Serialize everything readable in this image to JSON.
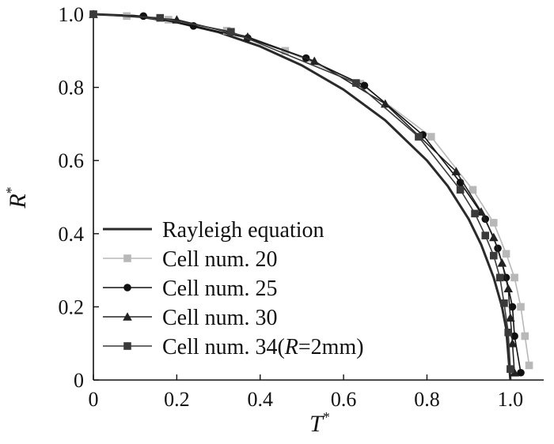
{
  "chart_data": {
    "type": "line",
    "title": "",
    "xlabel": "T",
    "xlabel_superscript": "*",
    "ylabel": "R",
    "ylabel_superscript": "*",
    "xlim": [
      0,
      1.08
    ],
    "ylim": [
      0,
      1.0
    ],
    "xticks": [
      0,
      0.2,
      0.4,
      0.6,
      0.8,
      1.0
    ],
    "xtick_labels": [
      "0",
      "0.2",
      "0.4",
      "0.6",
      "0.8",
      "1.0"
    ],
    "yticks": [
      0,
      0.2,
      0.4,
      0.6,
      0.8,
      1.0
    ],
    "ytick_labels": [
      "0",
      "0.2",
      "0.4",
      "0.6",
      "0.8",
      "1.0"
    ],
    "grid": false,
    "legend_position": "bottom-left",
    "series": [
      {
        "name": "Rayleigh equation",
        "legend_parts": [
          "Rayleigh equation"
        ],
        "color": "#2a2a2a",
        "marker": "none",
        "x": [
          0.0,
          0.1,
          0.2,
          0.3,
          0.4,
          0.5,
          0.6,
          0.7,
          0.8,
          0.85,
          0.9,
          0.93,
          0.96,
          0.98,
          0.99,
          1.0
        ],
        "y": [
          1.0,
          0.995,
          0.978,
          0.951,
          0.912,
          0.86,
          0.794,
          0.71,
          0.6,
          0.53,
          0.44,
          0.37,
          0.28,
          0.2,
          0.14,
          0.0
        ]
      },
      {
        "name": "Cell num. 20",
        "legend_parts": [
          "Cell num. 20"
        ],
        "color": "#b8b8b8",
        "marker": "square",
        "x": [
          0.0,
          0.08,
          0.18,
          0.32,
          0.46,
          0.64,
          0.81,
          0.91,
          0.96,
          0.99,
          1.01,
          1.025,
          1.035,
          1.045
        ],
        "y": [
          1.0,
          0.995,
          0.985,
          0.955,
          0.9,
          0.81,
          0.665,
          0.52,
          0.43,
          0.345,
          0.28,
          0.2,
          0.12,
          0.04
        ]
      },
      {
        "name": "Cell num. 25",
        "legend_parts": [
          "Cell num. 25"
        ],
        "color": "#111111",
        "marker": "circle",
        "x": [
          0.0,
          0.12,
          0.24,
          0.37,
          0.51,
          0.65,
          0.79,
          0.88,
          0.94,
          0.97,
          0.99,
          1.005,
          1.01,
          1.025
        ],
        "y": [
          1.0,
          0.995,
          0.968,
          0.935,
          0.88,
          0.805,
          0.67,
          0.54,
          0.44,
          0.36,
          0.28,
          0.2,
          0.12,
          0.02
        ]
      },
      {
        "name": "Cell num. 30",
        "legend_parts": [
          "Cell num. 30"
        ],
        "color": "#222222",
        "marker": "triangle",
        "x": [
          0.0,
          0.2,
          0.37,
          0.53,
          0.7,
          0.87,
          0.93,
          0.96,
          0.98,
          0.995,
          1.0,
          1.005,
          1.01
        ],
        "y": [
          1.0,
          0.985,
          0.938,
          0.872,
          0.755,
          0.57,
          0.46,
          0.39,
          0.32,
          0.25,
          0.17,
          0.1,
          0.02
        ]
      },
      {
        "name": "Cell num. 34(R=2mm)",
        "legend_parts": [
          "Cell num. 34(",
          "R",
          "=2mm)"
        ],
        "color": "#3a3a3a",
        "marker": "square",
        "x": [
          0.0,
          0.16,
          0.33,
          0.63,
          0.78,
          0.88,
          0.915,
          0.94,
          0.96,
          0.975,
          0.985,
          0.995,
          1.0
        ],
        "y": [
          1.0,
          0.99,
          0.952,
          0.812,
          0.665,
          0.52,
          0.455,
          0.395,
          0.34,
          0.28,
          0.21,
          0.13,
          0.03
        ]
      }
    ]
  }
}
